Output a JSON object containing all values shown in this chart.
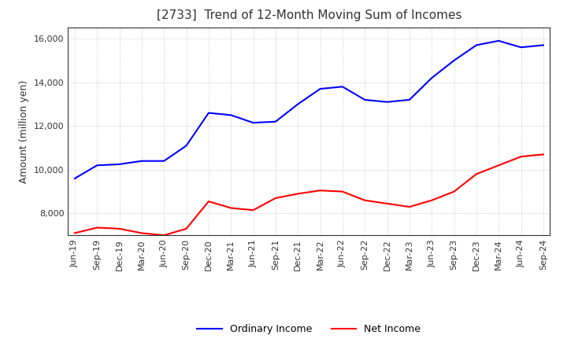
{
  "title": "[2733]  Trend of 12-Month Moving Sum of Incomes",
  "ylabel": "Amount (million yen)",
  "ylim": [
    7000,
    16500
  ],
  "yticks": [
    8000,
    10000,
    12000,
    14000,
    16000
  ],
  "x_labels": [
    "Jun-19",
    "Sep-19",
    "Dec-19",
    "Mar-20",
    "Jun-20",
    "Sep-20",
    "Dec-20",
    "Mar-21",
    "Jun-21",
    "Sep-21",
    "Dec-21",
    "Mar-22",
    "Jun-22",
    "Sep-22",
    "Dec-22",
    "Mar-23",
    "Jun-23",
    "Sep-23",
    "Dec-23",
    "Mar-24",
    "Jun-24",
    "Sep-24"
  ],
  "ordinary_income": [
    9600,
    10200,
    10250,
    10400,
    10400,
    11100,
    12600,
    12500,
    12150,
    12200,
    13000,
    13700,
    13800,
    13200,
    13100,
    13200,
    14200,
    15000,
    15700,
    15900,
    15600,
    15700
  ],
  "net_income": [
    7100,
    7350,
    7300,
    7100,
    7000,
    7300,
    8550,
    8250,
    8150,
    8700,
    8900,
    9050,
    9000,
    8600,
    8450,
    8300,
    8600,
    9000,
    9800,
    10200,
    10600,
    10700
  ],
  "ordinary_color": "#0000FF",
  "net_color": "#FF0000",
  "background_color": "#FFFFFF",
  "plot_bg_color": "#FFFFFF",
  "grid_color": "#AAAAAA",
  "title_fontsize": 11,
  "label_fontsize": 9,
  "tick_fontsize": 8,
  "legend_fontsize": 9
}
